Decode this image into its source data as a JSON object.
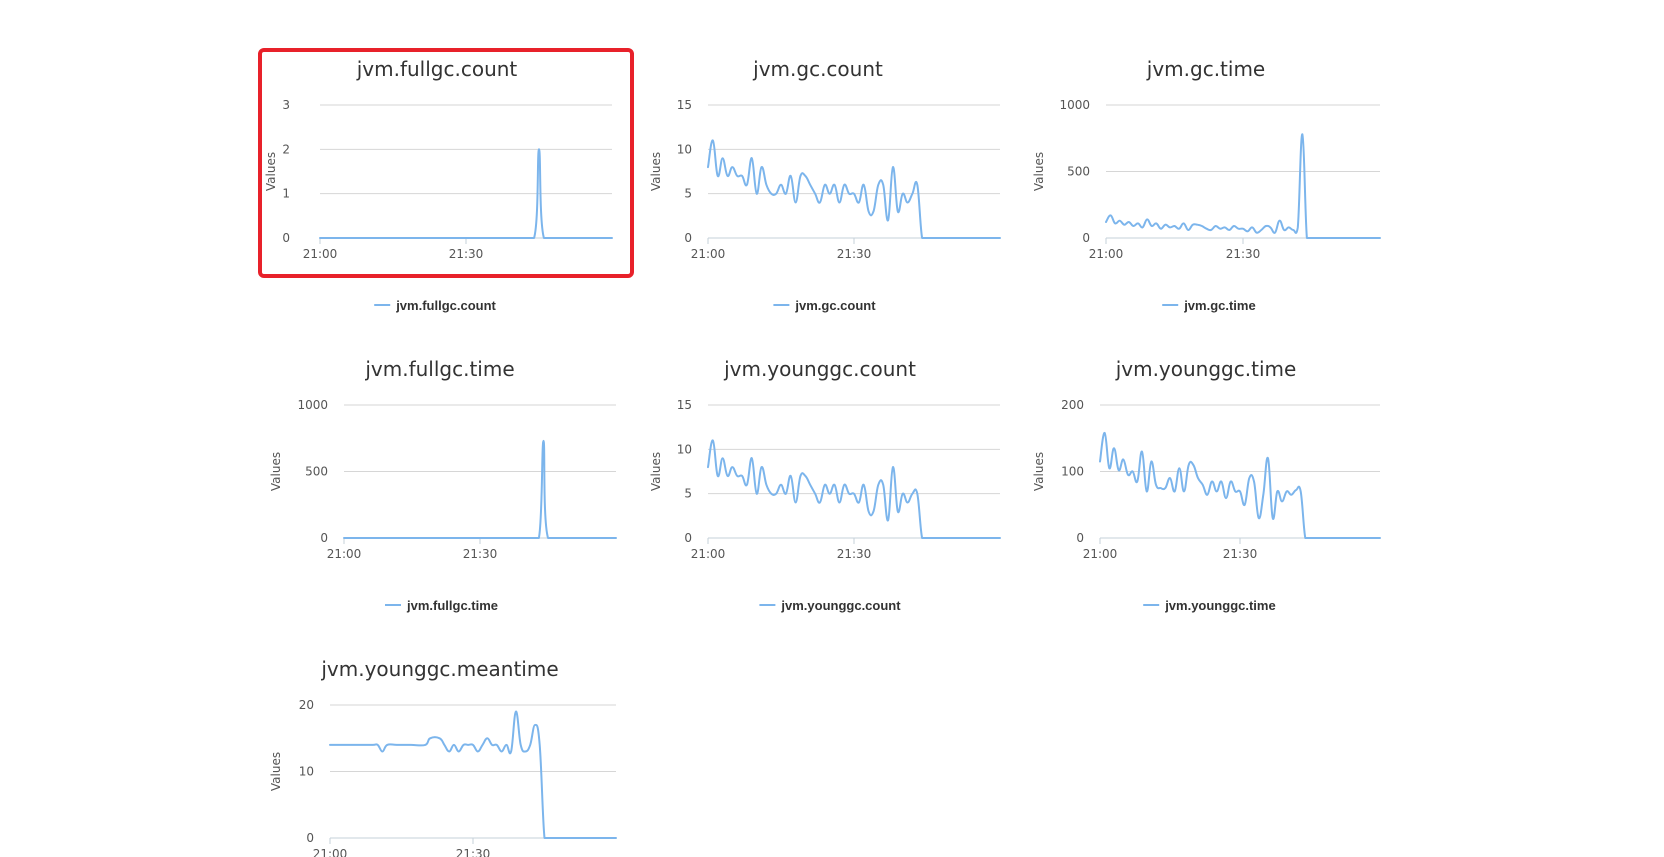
{
  "page": {
    "background": "#ffffff",
    "series_color": "#7cb5ec",
    "highlight_color": "#e8212a"
  },
  "chart_data": [
    {
      "type": "line",
      "title": "jvm.fullgc.count",
      "ylabel": "Values",
      "xlabel": "",
      "ylim": [
        0,
        3
      ],
      "yticks": [
        0,
        1,
        2,
        3
      ],
      "xlim": [
        "21:00",
        "22:00"
      ],
      "xticks": [
        "21:00",
        "21:30"
      ],
      "legend": "bottom-center",
      "grid": true,
      "highlighted": true,
      "series": [
        {
          "name": "jvm.fullgc.count",
          "color": "#7cb5ec",
          "x": [
            "21:00",
            "21:05",
            "21:10",
            "21:15",
            "21:20",
            "21:25",
            "21:30",
            "21:35",
            "21:40",
            "21:44",
            "21:45",
            "21:46",
            "21:50",
            "21:55",
            "22:00"
          ],
          "values": [
            0,
            0,
            0,
            0,
            0,
            0,
            0,
            0,
            0,
            0,
            2,
            0,
            0,
            0,
            0
          ]
        }
      ]
    },
    {
      "type": "line",
      "title": "jvm.gc.count",
      "ylabel": "Values",
      "xlabel": "",
      "ylim": [
        0,
        15
      ],
      "yticks": [
        0,
        5,
        10,
        15
      ],
      "xlim": [
        "21:00",
        "22:00"
      ],
      "xticks": [
        "21:00",
        "21:30"
      ],
      "legend": "bottom-center",
      "grid": true,
      "series": [
        {
          "name": "jvm.gc.count",
          "color": "#7cb5ec",
          "x": [
            "21:00",
            "21:01",
            "21:02",
            "21:03",
            "21:04",
            "21:05",
            "21:06",
            "21:07",
            "21:08",
            "21:09",
            "21:10",
            "21:11",
            "21:12",
            "21:13",
            "21:14",
            "21:15",
            "21:16",
            "21:17",
            "21:18",
            "21:19",
            "21:20",
            "21:21",
            "21:22",
            "21:23",
            "21:24",
            "21:25",
            "21:26",
            "21:27",
            "21:28",
            "21:29",
            "21:30",
            "21:31",
            "21:32",
            "21:33",
            "21:34",
            "21:35",
            "21:36",
            "21:37",
            "21:38",
            "21:39",
            "21:40",
            "21:41",
            "21:42",
            "21:43",
            "21:44",
            "21:45",
            "21:46",
            "21:50",
            "21:55",
            "22:00"
          ],
          "values": [
            8,
            11,
            7,
            9,
            7,
            8,
            7,
            7,
            6,
            9,
            5,
            8,
            6,
            5,
            5,
            6,
            5,
            7,
            4,
            7,
            7,
            6,
            5,
            4,
            6,
            5,
            6,
            4,
            6,
            5,
            5,
            4,
            6,
            3,
            3,
            6,
            6,
            2,
            8,
            3,
            5,
            4,
            5,
            6,
            0,
            0,
            0,
            0,
            0,
            0
          ]
        }
      ]
    },
    {
      "type": "line",
      "title": "jvm.gc.time",
      "ylabel": "Values",
      "xlabel": "",
      "ylim": [
        0,
        1000
      ],
      "yticks": [
        0,
        500,
        1000
      ],
      "xlim": [
        "21:00",
        "22:00"
      ],
      "xticks": [
        "21:00",
        "21:30"
      ],
      "legend": "bottom-center",
      "grid": true,
      "series": [
        {
          "name": "jvm.gc.time",
          "color": "#7cb5ec",
          "x": [
            "21:00",
            "21:01",
            "21:02",
            "21:03",
            "21:04",
            "21:05",
            "21:06",
            "21:07",
            "21:08",
            "21:09",
            "21:10",
            "21:11",
            "21:12",
            "21:13",
            "21:14",
            "21:15",
            "21:16",
            "21:17",
            "21:18",
            "21:19",
            "21:20",
            "21:21",
            "21:22",
            "21:23",
            "21:24",
            "21:25",
            "21:26",
            "21:27",
            "21:28",
            "21:29",
            "21:30",
            "21:31",
            "21:32",
            "21:33",
            "21:34",
            "21:35",
            "21:36",
            "21:37",
            "21:38",
            "21:39",
            "21:40",
            "21:41",
            "21:42",
            "21:43",
            "21:44",
            "21:45",
            "21:46",
            "21:50",
            "21:55",
            "22:00"
          ],
          "values": [
            120,
            170,
            110,
            130,
            100,
            120,
            90,
            110,
            80,
            140,
            90,
            110,
            70,
            100,
            80,
            90,
            70,
            110,
            60,
            100,
            100,
            90,
            70,
            60,
            90,
            70,
            80,
            60,
            90,
            70,
            70,
            50,
            80,
            40,
            60,
            90,
            80,
            40,
            130,
            60,
            80,
            60,
            80,
            780,
            0,
            0,
            0,
            0,
            0,
            0
          ]
        }
      ]
    },
    {
      "type": "line",
      "title": "jvm.fullgc.time",
      "ylabel": "Values",
      "xlabel": "",
      "ylim": [
        0,
        1000
      ],
      "yticks": [
        0,
        500,
        1000
      ],
      "xlim": [
        "21:00",
        "22:00"
      ],
      "xticks": [
        "21:00",
        "21:30"
      ],
      "legend": "bottom-center",
      "grid": true,
      "series": [
        {
          "name": "jvm.fullgc.time",
          "color": "#7cb5ec",
          "x": [
            "21:00",
            "21:05",
            "21:10",
            "21:15",
            "21:20",
            "21:25",
            "21:30",
            "21:35",
            "21:40",
            "21:43",
            "21:44",
            "21:45",
            "21:50",
            "21:55",
            "22:00"
          ],
          "values": [
            0,
            0,
            0,
            0,
            0,
            0,
            0,
            0,
            0,
            0,
            730,
            0,
            0,
            0,
            0
          ]
        }
      ]
    },
    {
      "type": "line",
      "title": "jvm.younggc.count",
      "ylabel": "Values",
      "xlabel": "",
      "ylim": [
        0,
        15
      ],
      "yticks": [
        0,
        5,
        10,
        15
      ],
      "xlim": [
        "21:00",
        "22:00"
      ],
      "xticks": [
        "21:00",
        "21:30"
      ],
      "legend": "bottom-center",
      "grid": true,
      "series": [
        {
          "name": "jvm.younggc.count",
          "color": "#7cb5ec",
          "x": [
            "21:00",
            "21:01",
            "21:02",
            "21:03",
            "21:04",
            "21:05",
            "21:06",
            "21:07",
            "21:08",
            "21:09",
            "21:10",
            "21:11",
            "21:12",
            "21:13",
            "21:14",
            "21:15",
            "21:16",
            "21:17",
            "21:18",
            "21:19",
            "21:20",
            "21:21",
            "21:22",
            "21:23",
            "21:24",
            "21:25",
            "21:26",
            "21:27",
            "21:28",
            "21:29",
            "21:30",
            "21:31",
            "21:32",
            "21:33",
            "21:34",
            "21:35",
            "21:36",
            "21:37",
            "21:38",
            "21:39",
            "21:40",
            "21:41",
            "21:42",
            "21:43",
            "21:44",
            "21:45",
            "21:46",
            "21:50",
            "21:55",
            "22:00"
          ],
          "values": [
            8,
            11,
            7,
            9,
            7,
            8,
            7,
            7,
            6,
            9,
            5,
            8,
            6,
            5,
            5,
            6,
            5,
            7,
            4,
            7,
            7,
            6,
            5,
            4,
            6,
            5,
            6,
            4,
            6,
            5,
            5,
            4,
            6,
            3,
            3,
            6,
            6,
            2,
            8,
            3,
            5,
            4,
            5,
            5,
            0,
            0,
            0,
            0,
            0,
            0
          ]
        }
      ]
    },
    {
      "type": "line",
      "title": "jvm.younggc.time",
      "ylabel": "Values",
      "xlabel": "",
      "ylim": [
        0,
        200
      ],
      "yticks": [
        0,
        100,
        200
      ],
      "xlim": [
        "21:00",
        "22:00"
      ],
      "xticks": [
        "21:00",
        "21:30"
      ],
      "legend": "bottom-center",
      "grid": true,
      "series": [
        {
          "name": "jvm.younggc.time",
          "color": "#7cb5ec",
          "x": [
            "21:00",
            "21:01",
            "21:02",
            "21:03",
            "21:04",
            "21:05",
            "21:06",
            "21:07",
            "21:08",
            "21:09",
            "21:10",
            "21:11",
            "21:12",
            "21:13",
            "21:14",
            "21:15",
            "21:16",
            "21:17",
            "21:18",
            "21:19",
            "21:20",
            "21:21",
            "21:22",
            "21:23",
            "21:24",
            "21:25",
            "21:26",
            "21:27",
            "21:28",
            "21:29",
            "21:30",
            "21:31",
            "21:32",
            "21:33",
            "21:34",
            "21:35",
            "21:36",
            "21:37",
            "21:38",
            "21:39",
            "21:40",
            "21:41",
            "21:42",
            "21:43",
            "21:44",
            "21:45",
            "21:46",
            "21:50",
            "21:55",
            "22:00"
          ],
          "values": [
            115,
            158,
            105,
            135,
            102,
            118,
            95,
            100,
            85,
            130,
            70,
            115,
            80,
            75,
            75,
            90,
            70,
            105,
            70,
            110,
            110,
            90,
            80,
            65,
            85,
            70,
            85,
            60,
            85,
            70,
            70,
            50,
            90,
            85,
            30,
            65,
            120,
            30,
            70,
            55,
            70,
            65,
            72,
            70,
            0,
            0,
            0,
            0,
            0,
            0
          ]
        }
      ]
    },
    {
      "type": "line",
      "title": "jvm.younggc.meantime",
      "ylabel": "Values",
      "xlabel": "",
      "ylim": [
        0,
        20
      ],
      "yticks": [
        0,
        10,
        20
      ],
      "xlim": [
        "21:00",
        "22:00"
      ],
      "xticks": [
        "21:00",
        "21:30"
      ],
      "legend": "none",
      "grid": true,
      "series": [
        {
          "name": "jvm.younggc.meantime",
          "color": "#7cb5ec",
          "x": [
            "21:00",
            "21:03",
            "21:06",
            "21:09",
            "21:10",
            "21:11",
            "21:12",
            "21:14",
            "21:17",
            "21:20",
            "21:21",
            "21:23",
            "21:24",
            "21:25",
            "21:26",
            "21:27",
            "21:28",
            "21:29",
            "21:30",
            "21:31",
            "21:32",
            "21:33",
            "21:34",
            "21:35",
            "21:36",
            "21:37",
            "21:38",
            "21:39",
            "21:40",
            "21:41",
            "21:42",
            "21:43",
            "21:44",
            "21:45",
            "21:46",
            "21:50",
            "21:55",
            "22:00"
          ],
          "values": [
            14,
            14,
            14,
            14,
            14,
            13,
            14,
            14,
            14,
            14,
            15,
            15,
            14,
            13,
            14,
            13,
            14,
            14,
            14,
            13,
            14,
            15,
            14,
            14,
            13,
            14,
            13,
            19,
            14,
            13,
            14,
            17,
            14,
            0,
            0,
            0,
            0,
            0
          ]
        }
      ]
    }
  ]
}
